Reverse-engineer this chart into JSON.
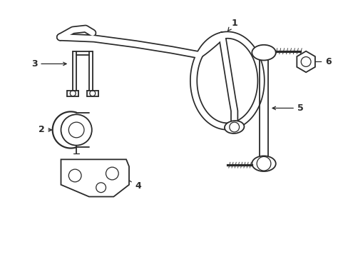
{
  "background_color": "#ffffff",
  "line_color": "#2a2a2a",
  "lw": 1.3,
  "fig_width": 4.89,
  "fig_height": 3.6,
  "dpi": 100
}
